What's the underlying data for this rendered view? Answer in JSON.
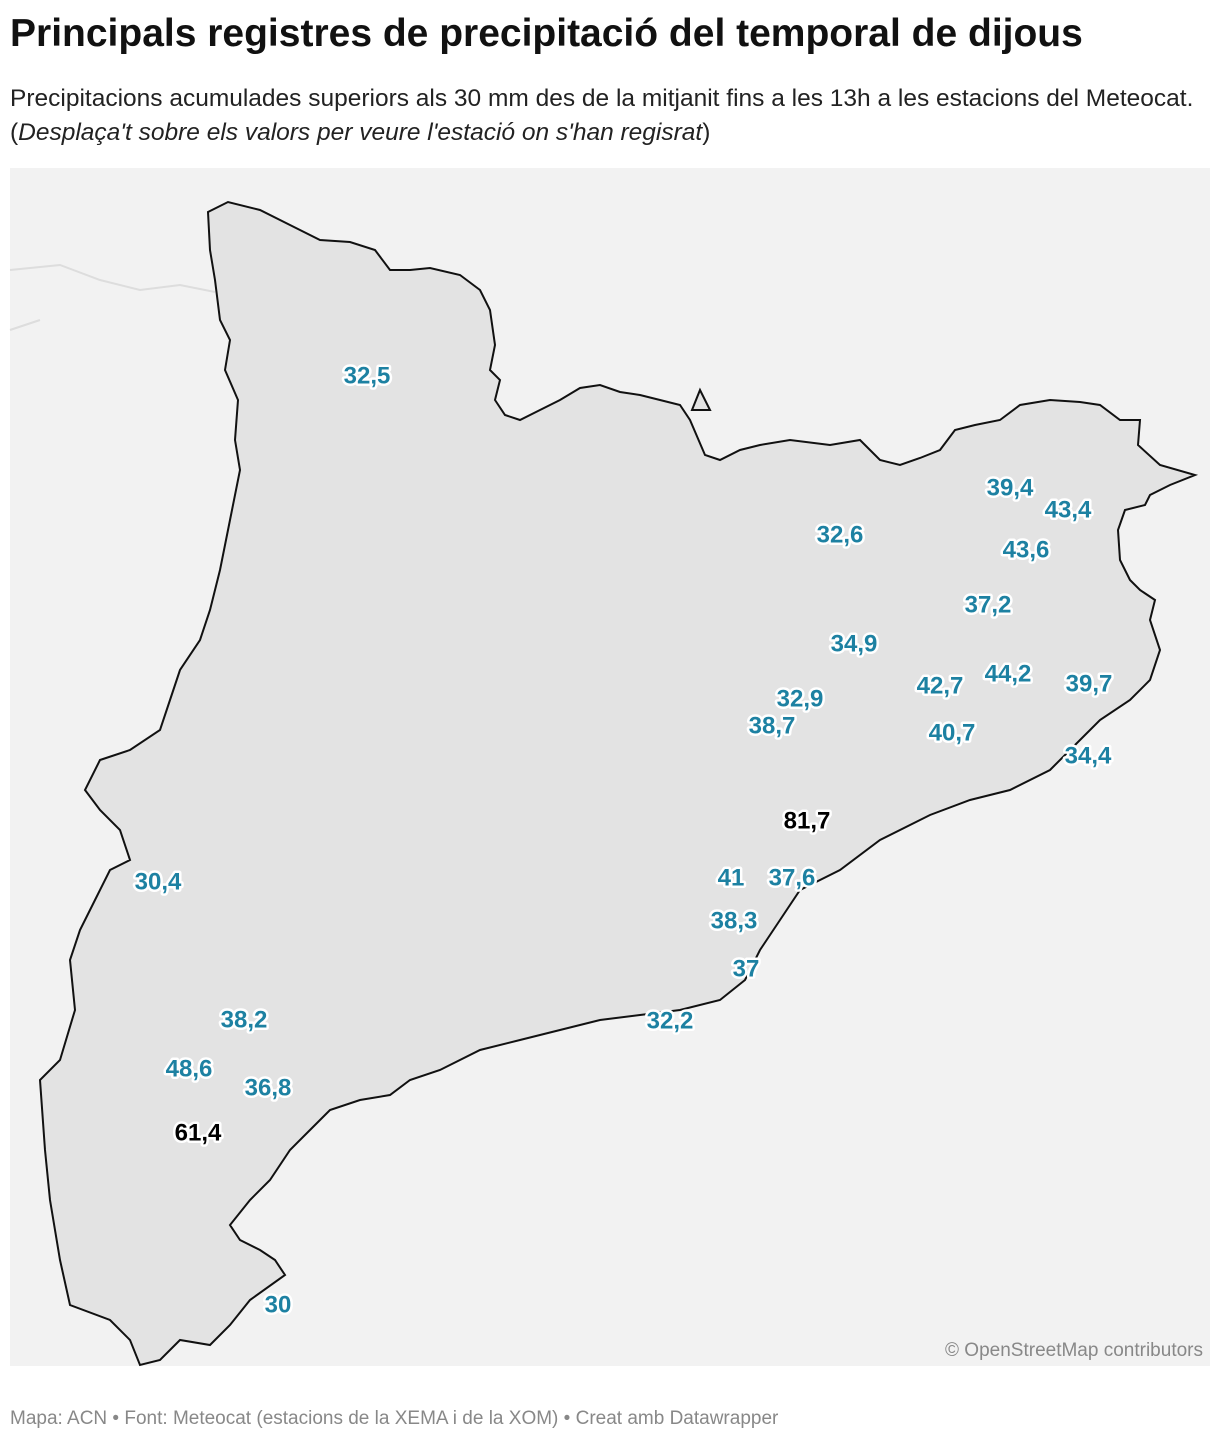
{
  "header": {
    "title": "Principals registres de precipitació del temporal de dijous",
    "subtitle": [
      "Precipitacions acumulades superiors als 30 mm des de la mitjanit fins a les 13h a les estacions del Meteocat. (",
      "Desplaça't sobre els valors per veure l'estació on s'han regisrat",
      ")"
    ]
  },
  "map": {
    "labels": [
      {
        "text": "32,5",
        "color": "#1d81a2"
      },
      {
        "text": "39,4",
        "color": "#1d81a2"
      },
      {
        "text": "43,4",
        "color": "#1d81a2"
      },
      {
        "text": "32,6",
        "color": "#1d81a2"
      },
      {
        "text": "43,6",
        "color": "#1d81a2"
      },
      {
        "text": "37,2",
        "color": "#1d81a2"
      },
      {
        "text": "34,9",
        "color": "#1d81a2"
      },
      {
        "text": "42,7",
        "color": "#1d81a2"
      },
      {
        "text": "44,2",
        "color": "#1d81a2"
      },
      {
        "text": "39,7",
        "color": "#1d81a2"
      },
      {
        "text": "32,9",
        "color": "#1d81a2"
      },
      {
        "text": "38,7",
        "color": "#1d81a2"
      },
      {
        "text": "40,7",
        "color": "#1d81a2"
      },
      {
        "text": "34,4",
        "color": "#1d81a2"
      },
      {
        "text": "81,7",
        "color": "#000000"
      },
      {
        "text": "30,4",
        "color": "#1d81a2"
      },
      {
        "text": "41",
        "color": "#1d81a2"
      },
      {
        "text": "37,6",
        "color": "#1d81a2"
      },
      {
        "text": "38,3",
        "color": "#1d81a2"
      },
      {
        "text": "37",
        "color": "#1d81a2"
      },
      {
        "text": "32,2",
        "color": "#1d81a2"
      },
      {
        "text": "38,2",
        "color": "#1d81a2"
      },
      {
        "text": "48,6",
        "color": "#1d81a2"
      },
      {
        "text": "36,8",
        "color": "#1d81a2"
      },
      {
        "text": "61,4",
        "color": "#000000"
      },
      {
        "text": "30",
        "color": "#1d81a2"
      }
    ],
    "attribution": "© OpenStreetMap contributors"
  },
  "footer": "Mapa: ACN • Font: Meteocat (estacions de la XEMA i de la XOM) • Creat amb Datawrapper"
}
